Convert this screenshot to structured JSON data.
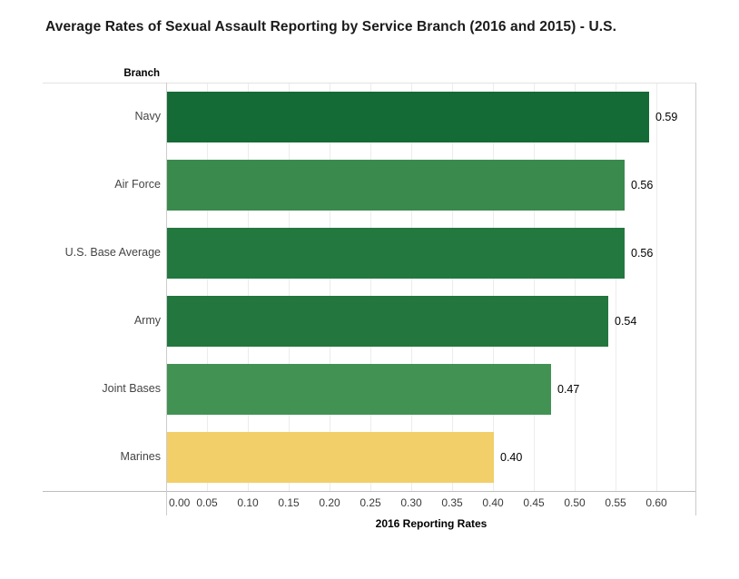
{
  "header": {
    "title": "Average Rates of Sexual Assault Reporting by Service Branch (2016 and 2015) - U.S."
  },
  "chart_data": {
    "type": "bar",
    "orientation": "horizontal",
    "title": "Average Rates of Sexual Assault Reporting by Service Branch (2016 and 2015) - U.S.",
    "category_field_label": "Branch",
    "categories": [
      "Navy",
      "Air Force",
      "U.S. Base Average",
      "Army",
      "Joint Bases",
      "Marines"
    ],
    "values": [
      0.59,
      0.56,
      0.56,
      0.54,
      0.47,
      0.4
    ],
    "value_labels": [
      "0.59",
      "0.56",
      "0.56",
      "0.54",
      "0.47",
      "0.40"
    ],
    "bar_colors": [
      "#156b35",
      "#3a8a4e",
      "#23783f",
      "#22763e",
      "#429254",
      "#f2cf69"
    ],
    "xlabel": "2016 Reporting Rates",
    "ylabel": "Branch",
    "xlim": [
      0,
      0.65
    ],
    "x_ticks": [
      "0.00",
      "0.05",
      "0.10",
      "0.15",
      "0.20",
      "0.25",
      "0.30",
      "0.35",
      "0.40",
      "0.45",
      "0.50",
      "0.55",
      "0.60"
    ],
    "grid": "vertical-only",
    "legend": "none"
  },
  "colors": {
    "dark_green": "#156b35",
    "medium_green": "#3a8a4e",
    "yellow": "#f2cf69",
    "gridline": "#ececec",
    "axis_line": "#bdbdbd",
    "border": "#cccccc"
  }
}
